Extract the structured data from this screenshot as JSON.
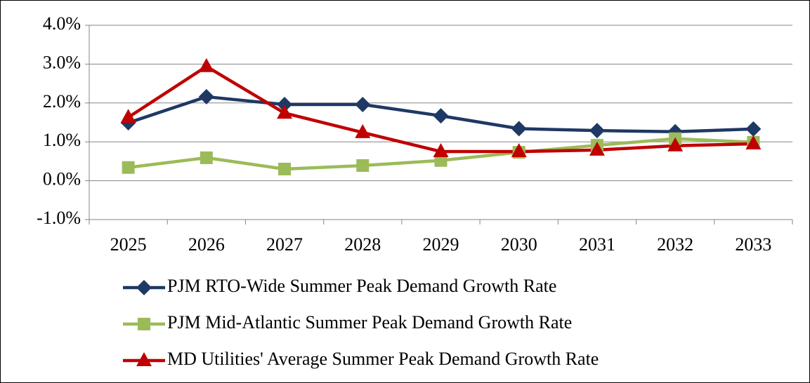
{
  "chart_data": {
    "type": "line",
    "categories": [
      "2025",
      "2026",
      "2027",
      "2028",
      "2029",
      "2030",
      "2031",
      "2032",
      "2033"
    ],
    "series": [
      {
        "name": "PJM RTO-Wide Summer Peak Demand Growth Rate",
        "color": "#1f3864",
        "marker": "diamond",
        "values": [
          1.49,
          2.16,
          1.96,
          1.96,
          1.67,
          1.34,
          1.29,
          1.26,
          1.33
        ]
      },
      {
        "name": "PJM Mid-Atlantic Summer Peak Demand Growth Rate",
        "color": "#9bbb59",
        "marker": "square",
        "values": [
          0.34,
          0.59,
          0.3,
          0.39,
          0.52,
          0.73,
          0.91,
          1.08,
          0.99
        ]
      },
      {
        "name": "MD Utilities' Average Summer Peak Demand Growth Rate",
        "color": "#c00000",
        "marker": "triangle",
        "values": [
          1.63,
          2.94,
          1.74,
          1.24,
          0.75,
          0.75,
          0.79,
          0.9,
          0.95
        ]
      }
    ],
    "ylim": [
      -1,
      4
    ],
    "yticks": [
      {
        "value": -1,
        "label": "-1.0%"
      },
      {
        "value": 0,
        "label": "0.0%"
      },
      {
        "value": 1,
        "label": "1.0%"
      },
      {
        "value": 2,
        "label": "2.0%"
      },
      {
        "value": 3,
        "label": "3.0%"
      },
      {
        "value": 4,
        "label": "4.0%"
      }
    ],
    "grid": true,
    "legend": "bottom"
  }
}
